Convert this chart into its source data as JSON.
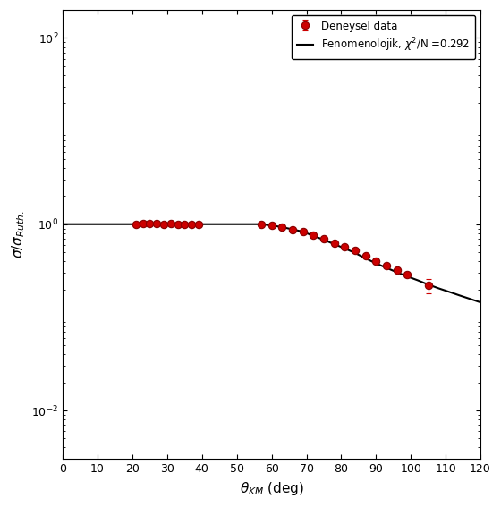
{
  "title": "",
  "xlabel": "$\\theta_{KM}$ (deg)",
  "ylabel": "$\\sigma/\\sigma_{Ruth.}$",
  "xlim": [
    0,
    120
  ],
  "ylim": [
    0.003,
    200
  ],
  "xticks": [
    0,
    10,
    20,
    30,
    40,
    50,
    60,
    70,
    80,
    90,
    100,
    110,
    120
  ],
  "yticks": [
    0.01,
    1.0,
    100
  ],
  "ytick_labels": [
    "10$^{-2}$",
    "10$^{0}$",
    "10$^{2}$"
  ],
  "legend_labels": [
    "Deneysel data",
    "Fenomenolojik, $\\chi^2$/N =0.292"
  ],
  "exp_data": {
    "theta": [
      21,
      23,
      25,
      27,
      29,
      31,
      33,
      35,
      37,
      39,
      57,
      60,
      63,
      66,
      69,
      72,
      75,
      78,
      81,
      84,
      87,
      90,
      93,
      96,
      99,
      105
    ],
    "sigma": [
      1.0,
      1.01,
      1.02,
      1.01,
      1.0,
      1.01,
      1.0,
      0.99,
      1.0,
      0.99,
      1.0,
      0.97,
      0.93,
      0.88,
      0.83,
      0.76,
      0.7,
      0.63,
      0.57,
      0.52,
      0.46,
      0.4,
      0.36,
      0.32,
      0.29,
      0.22
    ],
    "yerr_rel": [
      0.04,
      0.04,
      0.04,
      0.04,
      0.04,
      0.04,
      0.04,
      0.04,
      0.04,
      0.04,
      0.04,
      0.04,
      0.04,
      0.04,
      0.04,
      0.04,
      0.04,
      0.04,
      0.04,
      0.04,
      0.04,
      0.05,
      0.05,
      0.05,
      0.06,
      0.18
    ]
  },
  "line_data": {
    "theta": [
      0,
      5,
      10,
      15,
      20,
      25,
      30,
      35,
      40,
      45,
      50,
      55,
      57,
      60,
      63,
      66,
      69,
      72,
      75,
      78,
      81,
      84,
      87,
      90,
      93,
      96,
      99,
      102,
      105,
      108,
      111,
      114,
      117,
      120
    ],
    "sigma": [
      1.0,
      1.0,
      1.0,
      1.0,
      1.0,
      1.0,
      1.0,
      1.0,
      1.0,
      1.0,
      1.0,
      1.0,
      1.0,
      0.97,
      0.93,
      0.88,
      0.83,
      0.75,
      0.68,
      0.61,
      0.55,
      0.49,
      0.43,
      0.38,
      0.34,
      0.305,
      0.275,
      0.25,
      0.225,
      0.205,
      0.188,
      0.172,
      0.158,
      0.145
    ]
  },
  "marker_color": "#cc0000",
  "marker_edge_color": "#880000",
  "line_color": "#000000",
  "background_color": "#ffffff",
  "marker_size": 6,
  "line_width": 1.5,
  "errorbar_capsize": 2,
  "errorbar_linewidth": 0.8
}
